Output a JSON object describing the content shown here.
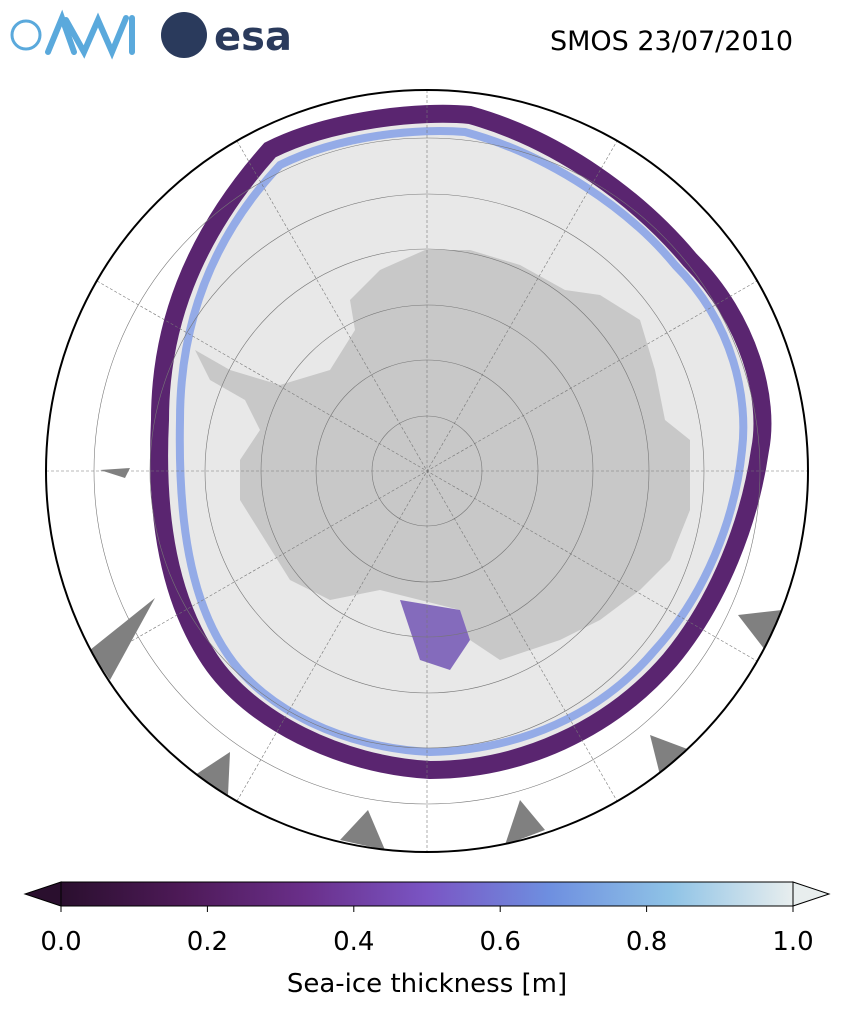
{
  "header": {
    "logos": [
      "esa"
    ],
    "title": "SMOS 23/07/2010"
  },
  "colorbar": {
    "label": "Sea-ice thickness [m]",
    "lim": [
      0,
      1
    ],
    "ticks": [
      {
        "value": 0,
        "label": "0.0"
      },
      0.2,
      0.4,
      0.6,
      0.8,
      {
        "value": 1,
        "label": "1.0"
      }
    ],
    "colormap": [
      "#2a0f2e",
      "#4e1a58",
      "#6a2f8a",
      "#7a55c4",
      "#6e8fe0",
      "#8fc3e6",
      "#e8eeee"
    ]
  }
}
